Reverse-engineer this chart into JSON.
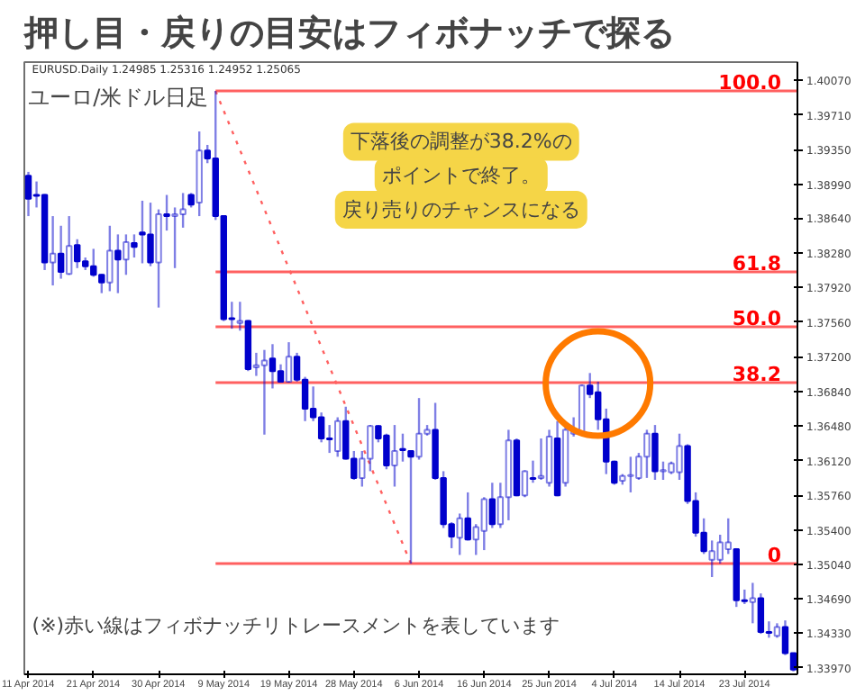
{
  "chart_data": {
    "type": "candlestick",
    "title": "押し目・戻りの目安はフィボナッチで探る",
    "annotations": [
      "ユーロ/米ドル日足",
      "EURUSD.Daily 1.24985 1.25316 1.24952 1.25065",
      "下落後の調整が38.2%の",
      "ポイントで終了。",
      "戻り売りのチャンスになる",
      "(※)赤い線はフィボナッチリトレースメントを表しています",
      {
        "text": "100.0",
        "y": 1.3996
      },
      {
        "text": "61.8",
        "y": 1.3808
      },
      {
        "text": "50.0",
        "y": 1.3751
      },
      {
        "text": "38.2",
        "y": 1.3693
      },
      {
        "text": "0",
        "y": 1.3505
      }
    ],
    "categories": [
      "11 Apr 2014",
      null,
      null,
      null,
      null,
      null,
      null,
      null,
      "21 Apr 2014",
      null,
      null,
      null,
      null,
      null,
      null,
      null,
      "30 Apr 2014",
      null,
      null,
      null,
      null,
      null,
      null,
      null,
      "9 May 2014",
      null,
      null,
      null,
      null,
      null,
      null,
      null,
      "19 May 2014",
      null,
      null,
      null,
      null,
      null,
      null,
      null,
      "28 May 2014",
      null,
      null,
      null,
      null,
      null,
      null,
      null,
      "6 Jun 2014",
      null,
      null,
      null,
      null,
      null,
      null,
      null,
      "16 Jun 2014",
      null,
      null,
      null,
      null,
      null,
      null,
      null,
      "25 Jun 2014",
      null,
      null,
      null,
      null,
      null,
      null,
      null,
      "4 Jul 2014",
      null,
      null,
      null,
      null,
      null,
      null,
      null,
      "14 Jul 2014",
      null,
      null,
      null,
      null,
      null,
      null,
      null,
      "23 Jul 2014",
      null,
      null,
      null,
      null,
      null,
      null
    ],
    "color": "#0000cc",
    "ohlc": [
      [
        1.3908,
        1.3912,
        1.3866,
        1.3884
      ],
      [
        1.3888,
        1.3902,
        1.3875,
        1.3887
      ],
      [
        1.3888,
        1.3889,
        1.381,
        1.3818
      ],
      [
        1.3818,
        1.3866,
        1.3794,
        1.3827
      ],
      [
        1.3827,
        1.3856,
        1.3801,
        1.3808
      ],
      [
        1.3806,
        1.3866,
        1.3805,
        1.3835
      ],
      [
        1.3836,
        1.3842,
        1.3812,
        1.3819
      ],
      [
        1.3819,
        1.3823,
        1.381,
        1.3814
      ],
      [
        1.3814,
        1.3832,
        1.3803,
        1.3805
      ],
      [
        1.3805,
        1.3806,
        1.3786,
        1.3797
      ],
      [
        1.3797,
        1.3856,
        1.3788,
        1.383
      ],
      [
        1.383,
        1.3847,
        1.3786,
        1.3821
      ],
      [
        1.3821,
        1.3847,
        1.3805,
        1.3839
      ],
      [
        1.3838,
        1.3847,
        1.3823,
        1.3834
      ],
      [
        1.3849,
        1.3882,
        1.3817,
        1.3847
      ],
      [
        1.3847,
        1.388,
        1.3814,
        1.3818
      ],
      [
        1.3818,
        1.3873,
        1.3771,
        1.3868
      ],
      [
        1.3868,
        1.3888,
        1.3851,
        1.3866
      ],
      [
        1.3866,
        1.3875,
        1.3812,
        1.3868
      ],
      [
        1.3868,
        1.389,
        1.3854,
        1.3873
      ],
      [
        1.3888,
        1.389,
        1.3875,
        1.3878
      ],
      [
        1.388,
        1.3954,
        1.3866,
        1.3934
      ],
      [
        1.3934,
        1.394,
        1.3921,
        1.3926
      ],
      [
        1.3926,
        1.3996,
        1.3862,
        1.3866
      ],
      [
        1.3866,
        1.3866,
        1.3757,
        1.3759
      ],
      [
        1.376,
        1.3777,
        1.3749,
        1.3759
      ],
      [
        1.3755,
        1.3777,
        1.3747,
        1.3757
      ],
      [
        1.3757,
        1.3758,
        1.3705,
        1.3707
      ],
      [
        1.3709,
        1.3724,
        1.37,
        1.3711
      ],
      [
        1.3711,
        1.3727,
        1.3639,
        1.3716
      ],
      [
        1.3718,
        1.3733,
        1.3687,
        1.3705
      ],
      [
        1.3705,
        1.3712,
        1.3693,
        1.3694
      ],
      [
        1.3694,
        1.3735,
        1.3693,
        1.372
      ],
      [
        1.372,
        1.3724,
        1.3694,
        1.3696
      ],
      [
        1.3696,
        1.3699,
        1.3653,
        1.3666
      ],
      [
        1.3666,
        1.3689,
        1.3653,
        1.3657
      ],
      [
        1.3657,
        1.3662,
        1.3631,
        1.3635
      ],
      [
        1.3635,
        1.3649,
        1.362,
        1.3634
      ],
      [
        1.3622,
        1.3657,
        1.3616,
        1.3653
      ],
      [
        1.3653,
        1.3668,
        1.3613,
        1.3614
      ],
      [
        1.3614,
        1.3622,
        1.3592,
        1.3594
      ],
      [
        1.3594,
        1.3622,
        1.3585,
        1.3614
      ],
      [
        1.3614,
        1.3649,
        1.3601,
        1.3648
      ],
      [
        1.3648,
        1.3649,
        1.3631,
        1.3635
      ],
      [
        1.3638,
        1.364,
        1.3603,
        1.3607
      ],
      [
        1.3607,
        1.3649,
        1.3585,
        1.3622
      ],
      [
        1.3624,
        1.364,
        1.3611,
        1.3623
      ],
      [
        1.3622,
        1.3622,
        1.3505,
        1.3616
      ],
      [
        1.3616,
        1.3677,
        1.3613,
        1.364
      ],
      [
        1.364,
        1.3649,
        1.3638,
        1.3644
      ],
      [
        1.3644,
        1.3672,
        1.3592,
        1.3594
      ],
      [
        1.3594,
        1.3601,
        1.3542,
        1.3546
      ],
      [
        1.3546,
        1.3548,
        1.3521,
        1.3533
      ],
      [
        1.3532,
        1.3557,
        1.3514,
        1.3552
      ],
      [
        1.3552,
        1.3579,
        1.3529,
        1.353
      ],
      [
        1.353,
        1.3546,
        1.3514,
        1.3543
      ],
      [
        1.3539,
        1.3574,
        1.3519,
        1.3572
      ],
      [
        1.3572,
        1.3589,
        1.3542,
        1.3546
      ],
      [
        1.3546,
        1.3589,
        1.3542,
        1.3574
      ],
      [
        1.3574,
        1.3644,
        1.355,
        1.3633
      ],
      [
        1.3633,
        1.3635,
        1.3575,
        1.3576
      ],
      [
        1.3576,
        1.3602,
        1.3574,
        1.3601
      ],
      [
        1.3594,
        1.3612,
        1.3589,
        1.3593
      ],
      [
        1.3594,
        1.3635,
        1.3592,
        1.3596
      ],
      [
        1.3589,
        1.3644,
        1.3585,
        1.3637
      ],
      [
        1.3635,
        1.3653,
        1.3575,
        1.3576
      ],
      [
        1.3589,
        1.3649,
        1.3585,
        1.3644
      ],
      [
        1.364,
        1.3657,
        1.3637,
        1.3644
      ],
      [
        1.3642,
        1.3691,
        1.364,
        1.369
      ],
      [
        1.369,
        1.3703,
        1.3677,
        1.3681
      ],
      [
        1.3683,
        1.3694,
        1.3644,
        1.3655
      ],
      [
        1.3655,
        1.3666,
        1.3598,
        1.3611
      ],
      [
        1.3611,
        1.3612,
        1.3587,
        1.3589
      ],
      [
        1.3591,
        1.3598,
        1.3587,
        1.3596
      ],
      [
        1.3596,
        1.3616,
        1.3579,
        1.3597
      ],
      [
        1.3594,
        1.362,
        1.3592,
        1.3616
      ],
      [
        1.3616,
        1.3644,
        1.3594,
        1.364
      ],
      [
        1.364,
        1.3649,
        1.3592,
        1.3601
      ],
      [
        1.3601,
        1.3611,
        1.3592,
        1.3602
      ],
      [
        1.36,
        1.3611,
        1.3598,
        1.3609
      ],
      [
        1.36,
        1.364,
        1.3592,
        1.3627
      ],
      [
        1.3627,
        1.3629,
        1.3567,
        1.357
      ],
      [
        1.357,
        1.3579,
        1.3533,
        1.3537
      ],
      [
        1.3537,
        1.3552,
        1.3515,
        1.3518
      ],
      [
        1.3509,
        1.3529,
        1.3491,
        1.3518
      ],
      [
        1.3509,
        1.3535,
        1.3505,
        1.3527
      ],
      [
        1.352,
        1.3552,
        1.3515,
        1.3527
      ],
      [
        1.352,
        1.3521,
        1.346,
        1.3467
      ],
      [
        1.3467,
        1.3478,
        1.3463,
        1.3466
      ],
      [
        1.3465,
        1.3485,
        1.3443,
        1.3469
      ],
      [
        1.3469,
        1.3474,
        1.3432,
        1.3434
      ],
      [
        1.3434,
        1.3445,
        1.3428,
        1.3433
      ],
      [
        1.343,
        1.3443,
        1.3428,
        1.3439
      ],
      [
        1.3439,
        1.3446,
        1.341,
        1.3412
      ],
      [
        1.3412,
        1.3412,
        1.3393,
        1.3395
      ]
    ],
    "series": [
      {
        "type": "line",
        "color": "#ff6060",
        "line_style": "dotted",
        "values": [
          null,
          null,
          null,
          null,
          null,
          null,
          null,
          null,
          null,
          null,
          null,
          null,
          null,
          null,
          null,
          null,
          null,
          null,
          null,
          null,
          null,
          null,
          null,
          1.3996,
          null,
          null,
          null,
          null,
          null,
          null,
          null,
          null,
          null,
          null,
          null,
          null,
          null,
          null,
          null,
          null,
          null,
          null,
          null,
          null,
          null,
          null,
          null,
          1.3505,
          null,
          null,
          null,
          null,
          null,
          null,
          null,
          null,
          null,
          null,
          null,
          null,
          null,
          null,
          null,
          null,
          null,
          null,
          null,
          null,
          null,
          null,
          null,
          null,
          null,
          null,
          null,
          null,
          null,
          null,
          null,
          null,
          null,
          null,
          null,
          null,
          null,
          null,
          null,
          null,
          null,
          null,
          null,
          null,
          null,
          null,
          null
        ]
      }
    ],
    "ref_lines": [
      {
        "axis": "y",
        "value": 1.3996,
        "color": "#ff6060"
      },
      {
        "axis": "y",
        "value": 1.3808,
        "color": "#ff6060"
      },
      {
        "axis": "y",
        "value": 1.3751,
        "color": "#ff6060"
      },
      {
        "axis": "y",
        "value": 1.3693,
        "color": "#ff6060"
      },
      {
        "axis": "y",
        "value": 1.3505,
        "color": "#ff6060"
      }
    ],
    "ylim": [
      1.339,
      1.4026
    ],
    "yticks": [
      {
        "value": 1.4007,
        "label": "1.40070"
      },
      {
        "value": 1.3971,
        "label": "1.39710"
      },
      {
        "value": 1.3935,
        "label": "1.39350"
      },
      {
        "value": 1.3899,
        "label": "1.38990"
      },
      {
        "value": 1.3864,
        "label": "1.38640"
      },
      {
        "value": 1.3828,
        "label": "1.38280"
      },
      {
        "value": 1.3792,
        "label": "1.37920"
      },
      {
        "value": 1.3756,
        "label": "1.37560"
      },
      {
        "value": 1.372,
        "label": "1.37200"
      },
      {
        "value": 1.3684,
        "label": "1.36840"
      },
      {
        "value": 1.3648,
        "label": "1.36480"
      },
      {
        "value": 1.3612,
        "label": "1.36120"
      },
      {
        "value": 1.3576,
        "label": "1.35760"
      },
      {
        "value": 1.354,
        "label": "1.35400"
      },
      {
        "value": 1.3504,
        "label": "1.35040"
      },
      {
        "value": 1.3469,
        "label": "1.34690"
      },
      {
        "value": 1.3433,
        "label": "1.34330"
      },
      {
        "value": 1.3397,
        "label": "1.33970"
      }
    ]
  }
}
